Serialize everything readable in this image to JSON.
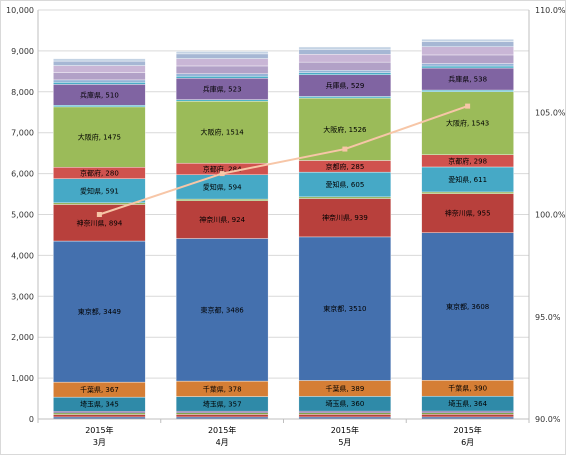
{
  "chart_data": {
    "type": "bar",
    "stacked": true,
    "combo_line": true,
    "categories": [
      {
        "year": "2015年",
        "month": "3月"
      },
      {
        "year": "2015年",
        "month": "4月"
      },
      {
        "year": "2015年",
        "month": "5月"
      },
      {
        "year": "2015年",
        "month": "6月"
      }
    ],
    "ylim_left": [
      0,
      10000
    ],
    "y_ticks_left": [
      "0",
      "1,000",
      "2,000",
      "3,000",
      "4,000",
      "5,000",
      "6,000",
      "7,000",
      "8,000",
      "9,000",
      "10,000"
    ],
    "ylim_right": [
      90.0,
      110.0
    ],
    "y_ticks_right": [
      "90.0%",
      "95.0%",
      "100.0%",
      "105.0%",
      "110.0%"
    ],
    "grid": true,
    "series": [
      {
        "name": "",
        "color": "#3b63a5",
        "values": [
          50,
          50,
          50,
          50
        ],
        "labeled": false
      },
      {
        "name": "",
        "color": "#b9403c",
        "values": [
          60,
          62,
          63,
          64
        ],
        "labeled": false
      },
      {
        "name": "",
        "color": "#7ea64a",
        "values": [
          40,
          40,
          40,
          40
        ],
        "labeled": false
      },
      {
        "name": "",
        "color": "#6b4f93",
        "values": [
          40,
          40,
          40,
          40
        ],
        "labeled": false
      },
      {
        "name": "埼玉県",
        "color": "#2f8aa8",
        "values": [
          345,
          357,
          360,
          364
        ],
        "labeled": true
      },
      {
        "name": "千葉県",
        "color": "#d57e35",
        "values": [
          367,
          378,
          389,
          390
        ],
        "labeled": true
      },
      {
        "name": "東京都",
        "color": "#4470ae",
        "values": [
          3449,
          3486,
          3510,
          3608
        ],
        "labeled": true
      },
      {
        "name": "神奈川県",
        "color": "#b8403c",
        "values": [
          894,
          924,
          939,
          955
        ],
        "labeled": true
      },
      {
        "name": "",
        "color": "#8aae4e",
        "values": [
          40,
          40,
          40,
          40
        ],
        "labeled": false
      },
      {
        "name": "愛知県",
        "color": "#46a9c6",
        "values": [
          591,
          594,
          605,
          611
        ],
        "labeled": true
      },
      {
        "name": "京都府",
        "color": "#d0524e",
        "values": [
          280,
          284,
          285,
          298
        ],
        "labeled": true
      },
      {
        "name": "大阪府",
        "color": "#9bbb59",
        "values": [
          1475,
          1514,
          1526,
          1543
        ],
        "labeled": true
      },
      {
        "name": "",
        "color": "#50b5c9",
        "values": [
          40,
          40,
          40,
          40
        ],
        "labeled": false
      },
      {
        "name": "兵庫県",
        "color": "#8064a2",
        "values": [
          510,
          523,
          529,
          538
        ],
        "labeled": true
      },
      {
        "name": "",
        "color": "#4bacc6",
        "values": [
          50,
          50,
          50,
          50
        ],
        "labeled": false
      },
      {
        "name": "",
        "color": "#95b3d7",
        "values": [
          60,
          60,
          60,
          60
        ],
        "labeled": false
      },
      {
        "name": "",
        "color": "#b2a1c7",
        "values": [
          180,
          190,
          200,
          210
        ],
        "labeled": false
      },
      {
        "name": "",
        "color": "#c9b6d6",
        "values": [
          170,
          180,
          190,
          200
        ],
        "labeled": false
      },
      {
        "name": "",
        "color": "#a6b7d4",
        "values": [
          110,
          115,
          120,
          125
        ],
        "labeled": false
      },
      {
        "name": "",
        "color": "#c4d3e4",
        "values": [
          60,
          60,
          60,
          60
        ],
        "labeled": false
      }
    ],
    "line": {
      "name": "",
      "color": "#f7c6a7",
      "axis": "right",
      "values": [
        100.0,
        102.0,
        103.2,
        105.3
      ]
    }
  }
}
